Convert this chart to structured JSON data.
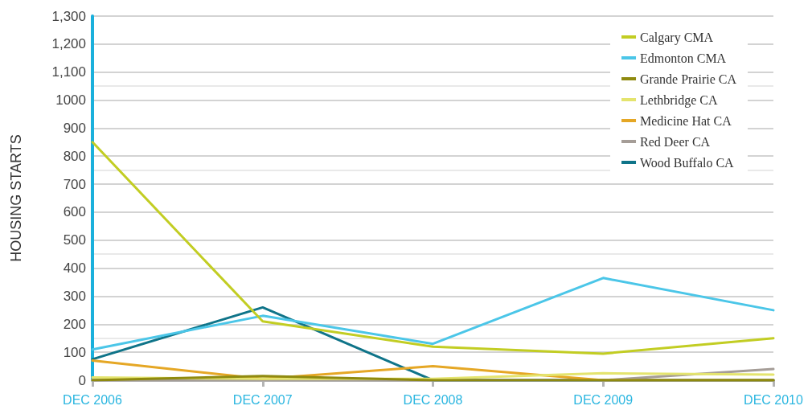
{
  "chart_data": {
    "type": "line",
    "ylabel": "HOUSING STARTS",
    "categories": [
      "DEC 2006",
      "DEC 2007",
      "DEC 2008",
      "DEC 2009",
      "DEC 2010"
    ],
    "ylim": [
      0,
      1300
    ],
    "yticks": [
      0,
      100,
      200,
      300,
      400,
      500,
      600,
      700,
      800,
      900,
      1000,
      {
        "value": 1100,
        "label": "1,100"
      },
      {
        "value": 1200,
        "label": "1,200"
      },
      {
        "value": 1300,
        "label": "1,300"
      }
    ],
    "grid": "y",
    "legend": "top right",
    "marker": "none",
    "line_style": "solid",
    "series": [
      {
        "name": "Calgary CMA",
        "color": "#c2cd23",
        "values": [
          850,
          210,
          120,
          95,
          150
        ]
      },
      {
        "name": "Edmonton CMA",
        "color": "#4bc6e8",
        "values": [
          110,
          230,
          130,
          365,
          250
        ]
      },
      {
        "name": "Grande Prairie CA",
        "color": "#8f8a0f",
        "values": [
          0,
          15,
          0,
          0,
          0
        ]
      },
      {
        "name": "Lethbridge CA",
        "color": "#e4e46e",
        "values": [
          10,
          5,
          5,
          25,
          20
        ]
      },
      {
        "name": "Medicine Hat CA",
        "color": "#e5a725",
        "values": [
          70,
          5,
          50,
          0,
          0
        ]
      },
      {
        "name": "Red Deer CA",
        "color": "#a59d97",
        "values": [
          0,
          0,
          0,
          0,
          40
        ]
      },
      {
        "name": "Wood Buffalo CA",
        "color": "#0f7489",
        "values": [
          75,
          260,
          0,
          0,
          0
        ]
      }
    ]
  }
}
